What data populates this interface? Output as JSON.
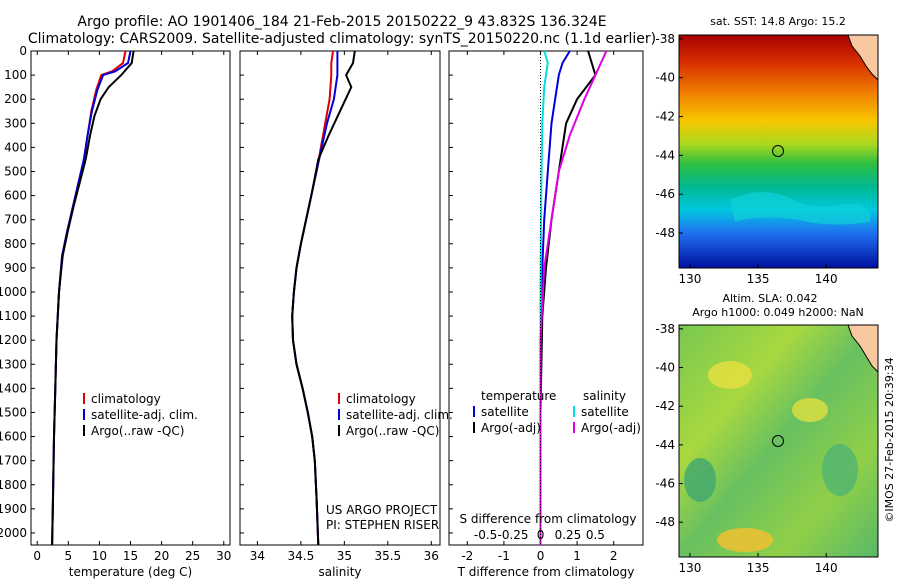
{
  "header": {
    "title_line1": "Argo profile: AO 1901406_184 21-Feb-2015 20150222_9 43.832S 136.324E",
    "title_line2": "Climatology: CARS2009. Satellite-adjusted climatology: synTS_20150220.nc (1.1d earlier)"
  },
  "colors": {
    "climatology": "#dd0000",
    "satellite": "#0000dd",
    "argo": "#000000",
    "sal_satellite": "#00e0e0",
    "sal_argo": "#e000e0"
  },
  "chart_data": [
    {
      "type": "line",
      "xlabel": "temperature (deg C)",
      "ylabel": "",
      "xlim": [
        -1,
        31
      ],
      "ylim": [
        2050,
        0
      ],
      "xticks": [
        "0",
        "5",
        "10",
        "15",
        "20",
        "25",
        "30"
      ],
      "yticks": [
        "0",
        "100",
        "200",
        "300",
        "400",
        "500",
        "600",
        "700",
        "800",
        "900",
        "1000",
        "1100",
        "1200",
        "1300",
        "1400",
        "1500",
        "1600",
        "1700",
        "1800",
        "1900",
        "2000"
      ],
      "legend": [
        "climatology",
        "satellite-adj. clim.",
        "Argo(..raw -QC)"
      ],
      "legend_position": "lower-right",
      "series": [
        {
          "name": "climatology",
          "x": [
            14.2,
            13.8,
            12.0,
            10.3,
            9.5,
            8.7,
            8.1,
            7.5,
            6.6,
            5.7,
            4.8,
            4.0,
            3.5,
            3.1,
            2.9,
            2.7,
            2.6,
            2.5,
            2.4
          ],
          "y": [
            0,
            50,
            85,
            100,
            160,
            250,
            350,
            450,
            550,
            650,
            750,
            850,
            1000,
            1200,
            1400,
            1600,
            1750,
            1900,
            2050
          ]
        },
        {
          "name": "satellite-adj. clim.",
          "x": [
            15.0,
            14.6,
            12.5,
            10.6,
            9.7,
            8.8,
            8.1,
            7.5,
            6.6,
            5.7,
            4.8,
            4.0,
            3.5,
            3.1,
            2.9,
            2.7,
            2.6,
            2.5,
            2.4
          ],
          "y": [
            0,
            50,
            85,
            100,
            160,
            250,
            350,
            450,
            550,
            650,
            750,
            850,
            1000,
            1200,
            1400,
            1600,
            1750,
            1900,
            2050
          ]
        },
        {
          "name": "Argo(..raw -QC)",
          "x": [
            15.5,
            15.2,
            13.5,
            11.5,
            10.2,
            9.2,
            8.5,
            7.8,
            6.8,
            5.8,
            4.9,
            4.1,
            3.5,
            3.1,
            2.9,
            2.7,
            2.6,
            2.5,
            2.4
          ],
          "y": [
            0,
            50,
            100,
            150,
            200,
            270,
            350,
            450,
            550,
            650,
            750,
            850,
            1000,
            1200,
            1400,
            1600,
            1750,
            1900,
            2050
          ]
        }
      ]
    },
    {
      "type": "line",
      "xlabel": "salinity",
      "ylabel": "",
      "xlim": [
        33.8,
        36.1
      ],
      "ylim": [
        2050,
        0
      ],
      "xticks": [
        "34",
        "34.5",
        "35",
        "35.5",
        "36"
      ],
      "legend": [
        "climatology",
        "satellite-adj. clim.",
        "Argo(..raw -QC)"
      ],
      "legend_position": "lower-right",
      "annotations": [
        "US ARGO PROJECT",
        "PI: STEPHEN RISER"
      ],
      "series": [
        {
          "name": "climatology",
          "x": [
            34.87,
            34.85,
            34.85,
            34.83,
            34.78,
            34.73,
            34.68,
            34.62,
            34.56,
            34.5,
            34.45,
            34.42,
            34.4,
            34.41,
            34.45,
            34.52,
            34.58,
            34.63,
            34.66,
            34.68,
            34.7
          ],
          "y": [
            0,
            50,
            100,
            200,
            300,
            400,
            500,
            600,
            700,
            800,
            900,
            1000,
            1100,
            1200,
            1300,
            1400,
            1500,
            1600,
            1700,
            1850,
            2050
          ]
        },
        {
          "name": "satellite-adj. clim.",
          "x": [
            34.92,
            34.92,
            34.92,
            34.88,
            34.8,
            34.74,
            34.68,
            34.62,
            34.56,
            34.5,
            34.45,
            34.42,
            34.4,
            34.41,
            34.45,
            34.52,
            34.58,
            34.63,
            34.66,
            34.68,
            34.7
          ],
          "y": [
            0,
            50,
            100,
            200,
            300,
            400,
            500,
            600,
            700,
            800,
            900,
            1000,
            1100,
            1200,
            1300,
            1400,
            1500,
            1600,
            1700,
            1850,
            2050
          ]
        },
        {
          "name": "Argo(..raw -QC)",
          "x": [
            35.12,
            35.1,
            35.02,
            35.08,
            34.95,
            34.82,
            34.7,
            34.62,
            34.56,
            34.5,
            34.45,
            34.42,
            34.4,
            34.41,
            34.45,
            34.52,
            34.58,
            34.63,
            34.66,
            34.68,
            34.7
          ],
          "y": [
            0,
            50,
            100,
            150,
            250,
            350,
            450,
            600,
            700,
            800,
            900,
            1000,
            1100,
            1200,
            1300,
            1400,
            1500,
            1600,
            1700,
            1850,
            2050
          ]
        }
      ]
    },
    {
      "type": "line",
      "xlabel": "T difference from climatology",
      "xlabel_top": "S difference from climatology",
      "ylabel": "",
      "xlim": [
        -2.5,
        2.8
      ],
      "ylim": [
        2050,
        0
      ],
      "xticks_bottom": [
        "-2",
        "-1",
        "0",
        "1",
        "2"
      ],
      "xticks_top": [
        "-0.5",
        "-0.25",
        "0",
        "0.25",
        "0.5"
      ],
      "legend_groups": [
        {
          "title": "temperature",
          "entries": [
            "satellite",
            "Argo(-adj)"
          ]
        },
        {
          "title": "salinity",
          "entries": [
            "satellite",
            "Argo(-adj)"
          ]
        }
      ],
      "legend_position": "lower-center",
      "series": [
        {
          "name": "temperature satellite",
          "x": [
            0.8,
            0.6,
            0.5,
            0.3,
            0.2,
            0.1,
            0.05,
            0.02,
            0.0,
            0.0
          ],
          "y": [
            0,
            50,
            100,
            300,
            500,
            700,
            900,
            1100,
            1500,
            2050
          ]
        },
        {
          "name": "temperature Argo(-adj)",
          "x": [
            1.3,
            1.5,
            1.0,
            0.7,
            0.5,
            0.3,
            0.15,
            0.05,
            0.0,
            0.0
          ],
          "y": [
            0,
            100,
            200,
            300,
            500,
            700,
            900,
            1100,
            1500,
            2050
          ]
        },
        {
          "name": "salinity satellite",
          "x": [
            0.1,
            0.2,
            0.1,
            0.05,
            0.02,
            0.0,
            0.0
          ],
          "y": [
            0,
            50,
            150,
            300,
            600,
            1000,
            2050
          ]
        },
        {
          "name": "salinity Argo(-adj)",
          "x": [
            1.8,
            1.5,
            1.2,
            0.8,
            0.5,
            0.3,
            0.1,
            0.0,
            0.0
          ],
          "y": [
            0,
            100,
            200,
            350,
            500,
            700,
            900,
            1200,
            2050
          ]
        }
      ]
    },
    {
      "type": "heatmap",
      "title": "sat. SST: 14.8 Argo: 15.2",
      "xticks": [
        "130",
        "135",
        "140"
      ],
      "yticks": [
        "-38",
        "-40",
        "-42",
        "-44",
        "-46",
        "-48"
      ],
      "marker": {
        "lon": 136.3,
        "lat": -43.8
      }
    },
    {
      "type": "heatmap",
      "title_line1": "Altim. SLA: 0.042",
      "title_line2": "Argo h1000: 0.049 h2000: NaN",
      "xticks": [
        "130",
        "135",
        "140"
      ],
      "yticks": [
        "-38",
        "-40",
        "-42",
        "-44",
        "-46",
        "-48"
      ],
      "marker": {
        "lon": 136.3,
        "lat": -43.8
      }
    }
  ],
  "footer": {
    "imos_stamp": "©IMOS 27-Feb-2015 20:39:34"
  }
}
